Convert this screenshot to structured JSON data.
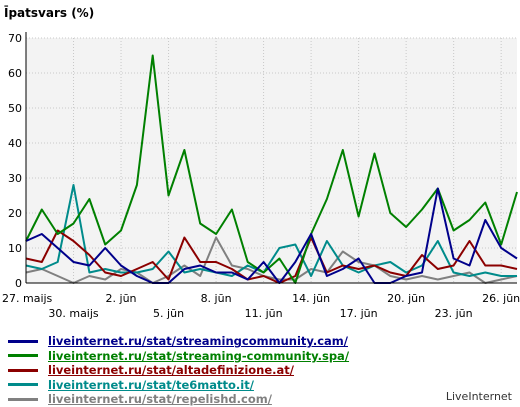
{
  "chart_data": {
    "type": "line",
    "title": "Īpatsvars (%)",
    "ylim": [
      0,
      70
    ],
    "yticks": [
      0,
      10,
      20,
      30,
      40,
      50,
      60,
      70
    ],
    "x_tick_labels": [
      {
        "index": 0,
        "label": "27. maijs",
        "row": 1
      },
      {
        "index": 3,
        "label": "30. maijs",
        "row": 2
      },
      {
        "index": 6,
        "label": "2. jūn",
        "row": 1
      },
      {
        "index": 9,
        "label": "5. jūn",
        "row": 2
      },
      {
        "index": 12,
        "label": "8. jūn",
        "row": 1
      },
      {
        "index": 15,
        "label": "11. jūn",
        "row": 2
      },
      {
        "index": 18,
        "label": "14. jūn",
        "row": 1
      },
      {
        "index": 21,
        "label": "17. jūn",
        "row": 2
      },
      {
        "index": 24,
        "label": "20. jūn",
        "row": 1
      },
      {
        "index": 27,
        "label": "23. jūn",
        "row": 2
      },
      {
        "index": 30,
        "label": "26. jūn",
        "row": 1
      }
    ],
    "grid": true,
    "series": [
      {
        "name": "liveinternet.ru/stat/streamingcommunity.cam/",
        "color": "#00008b",
        "values": [
          12,
          14,
          10,
          6,
          5,
          10,
          5,
          2,
          0,
          0,
          4,
          5,
          3,
          3,
          1,
          6,
          0,
          6,
          14,
          2,
          4,
          7,
          0,
          0,
          2,
          3,
          27,
          7,
          5,
          18,
          10,
          7
        ]
      },
      {
        "name": "liveinternet.ru/stat/streaming-community.spa/",
        "color": "#008000",
        "values": [
          12,
          21,
          14,
          17,
          24,
          11,
          15,
          28,
          65,
          25,
          38,
          17,
          14,
          21,
          6,
          3,
          7,
          0,
          14,
          24,
          38,
          19,
          37,
          20,
          16,
          21,
          27,
          15,
          18,
          23,
          11,
          26
        ]
      },
      {
        "name": "liveinternet.ru/stat/altadefinizione.at/",
        "color": "#8b0000",
        "values": [
          7,
          6,
          15,
          12,
          8,
          3,
          2,
          4,
          6,
          1,
          13,
          6,
          6,
          4,
          1,
          2,
          0,
          2,
          13,
          3,
          5,
          4,
          5,
          3,
          2,
          8,
          4,
          5,
          12,
          5,
          5,
          4
        ]
      },
      {
        "name": "liveinternet.ru/stat/te6matto.it/",
        "color": "#008b8b",
        "values": [
          5,
          4,
          6,
          28,
          3,
          4,
          3,
          3,
          4,
          9,
          3,
          4,
          3,
          2,
          5,
          3,
          10,
          11,
          2,
          12,
          5,
          3,
          5,
          6,
          3,
          5,
          12,
          3,
          2,
          3,
          2,
          2
        ]
      },
      {
        "name": "liveinternet.ru/stat/repelishd.com/",
        "color": "#808080",
        "values": [
          3,
          4,
          2,
          0,
          2,
          1,
          4,
          3,
          0,
          2,
          5,
          2,
          13,
          5,
          4,
          2,
          1,
          1,
          4,
          3,
          9,
          6,
          5,
          2,
          1,
          2,
          1,
          2,
          3,
          0,
          1,
          2
        ]
      }
    ]
  },
  "footer": {
    "brand": "LiveInternet"
  }
}
